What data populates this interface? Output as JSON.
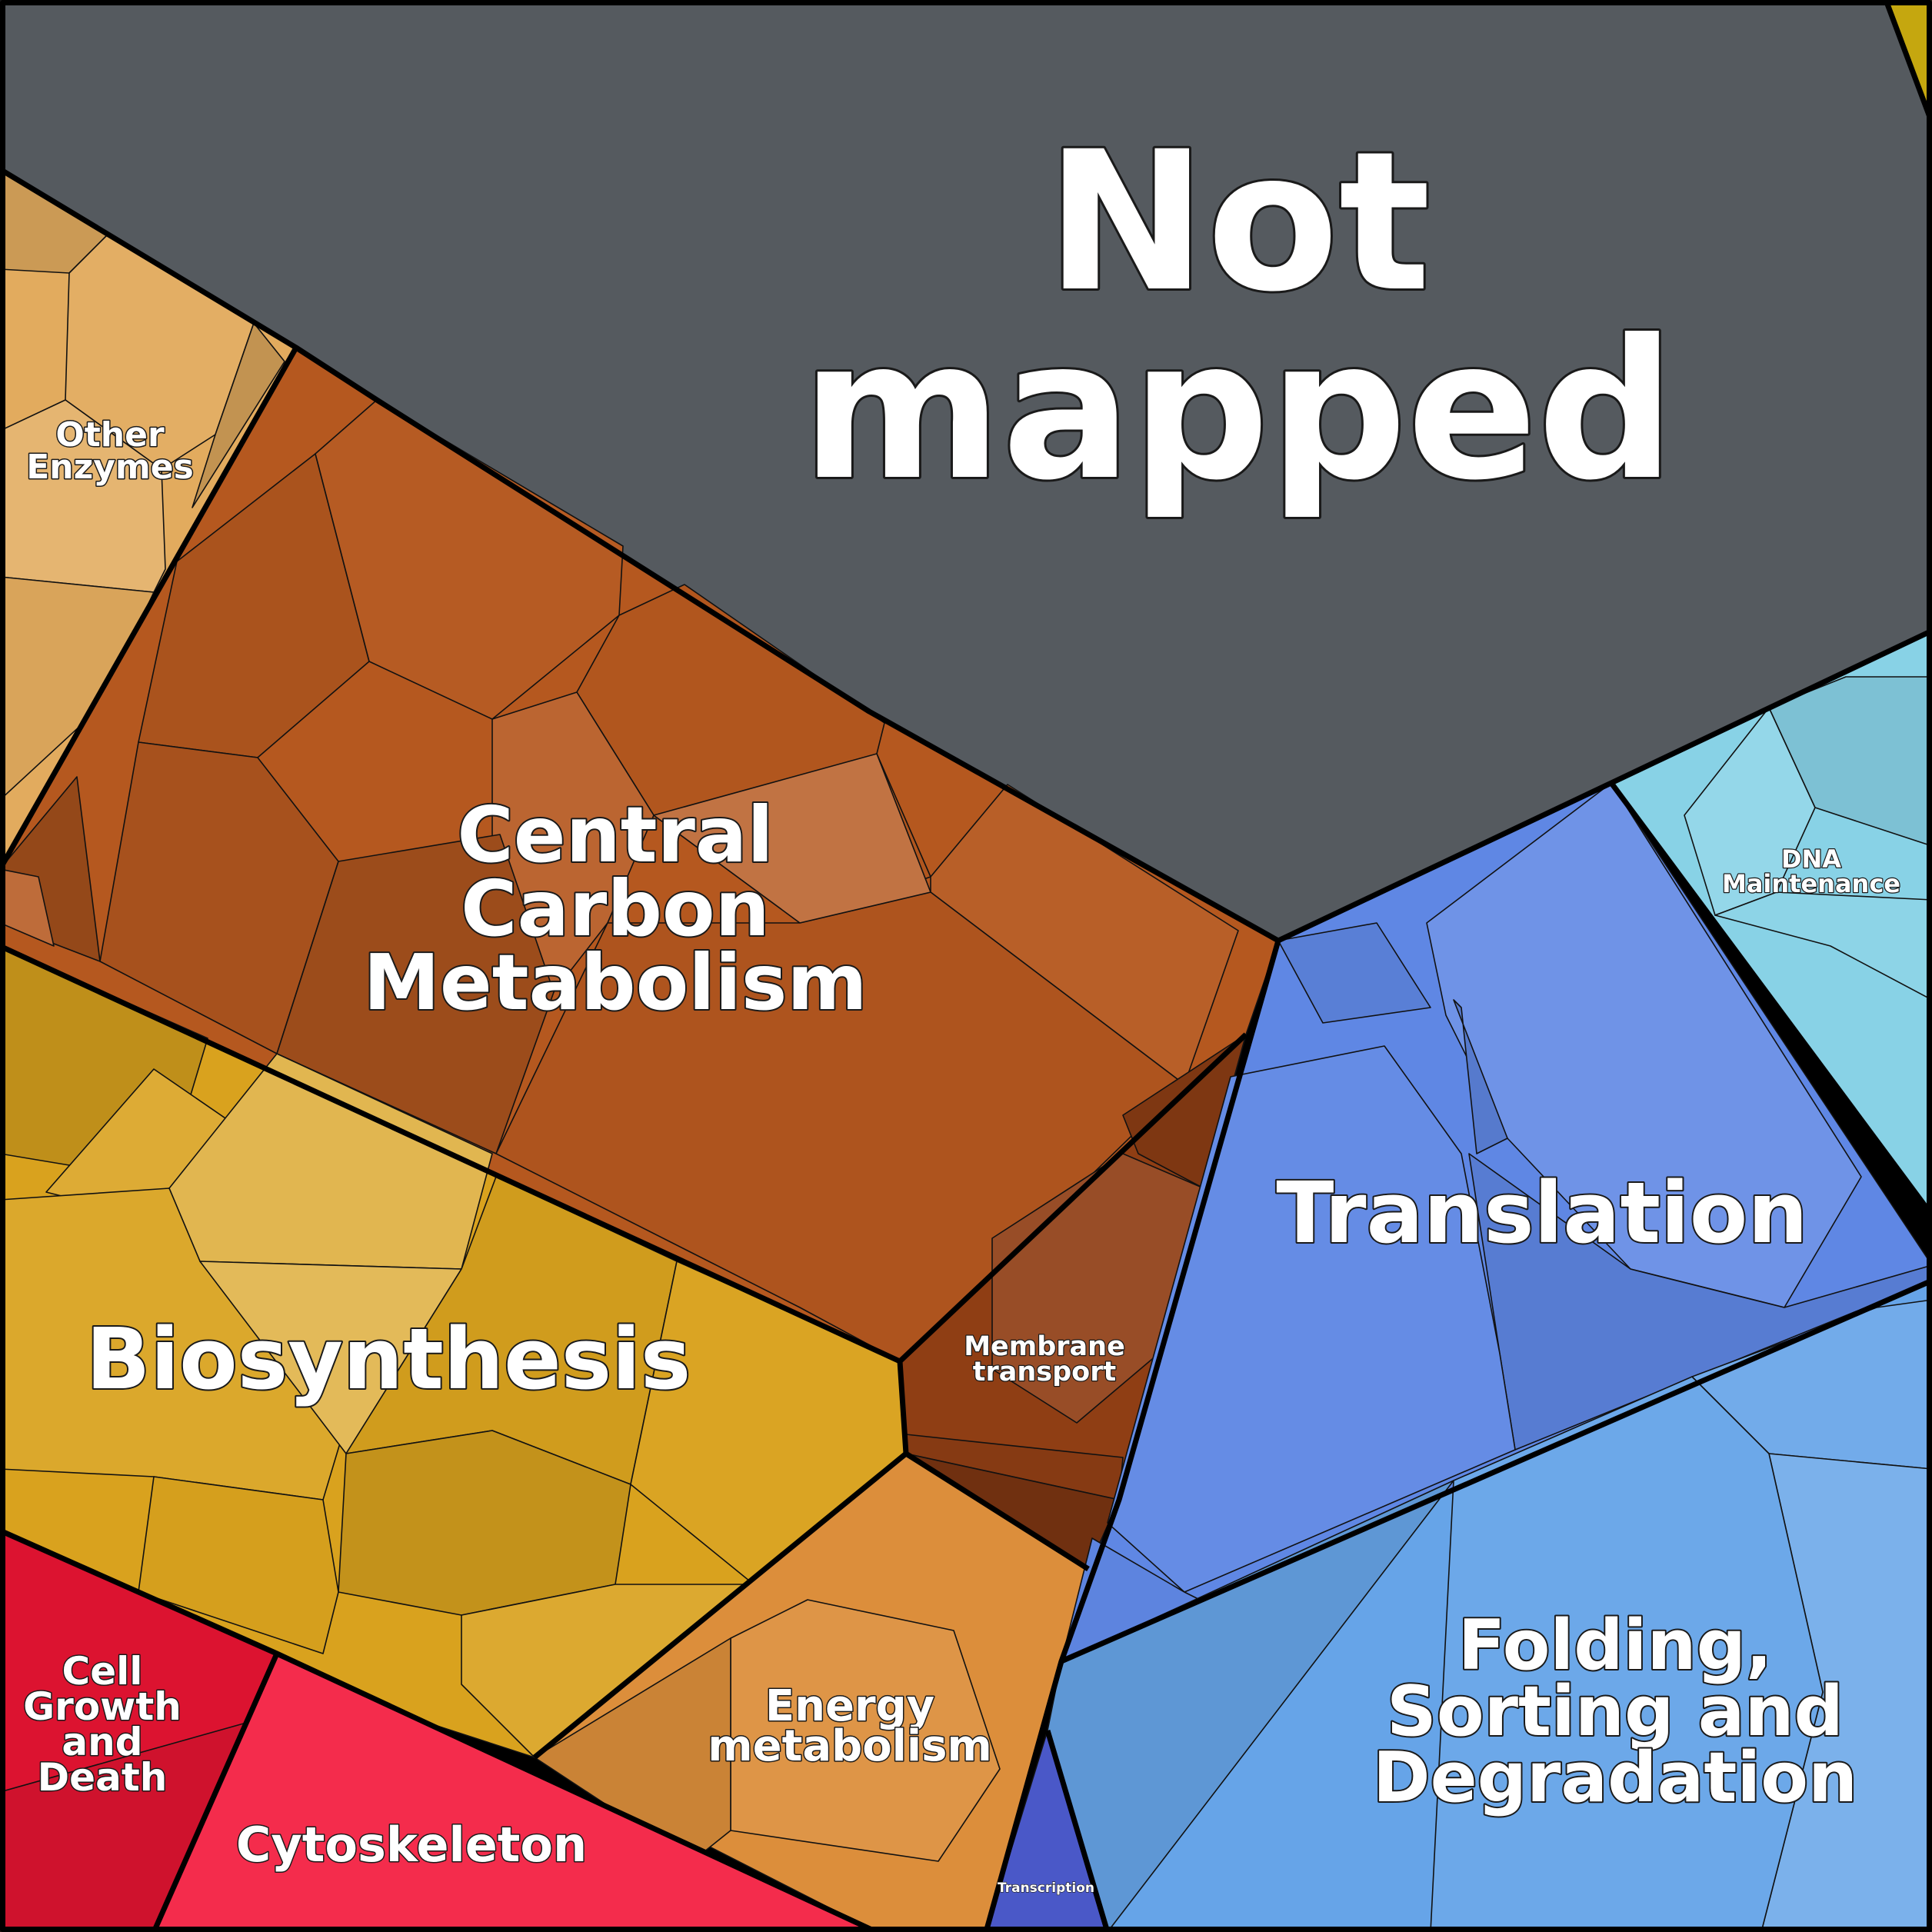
{
  "title": "",
  "colors": {
    "not_mapped": "#555A5F",
    "central_carbon": "#B5581F",
    "other_enzymes": "#E2AB5E",
    "biosynthesis": "#D9A21E",
    "membrane": "#8F3E14",
    "energy": "#DC8E3B",
    "cell_growth": "#DC1330",
    "cytoskeleton": "#F42C4C",
    "transcription": "#4A58C8",
    "translation": "#5F87E4",
    "folding": "#66A4E8",
    "dna": "#88D2E6",
    "corner": "#C5A70F"
  },
  "regions": [
    {
      "id": "not_mapped",
      "label_lines": [
        "Not",
        "mapped"
      ]
    },
    {
      "id": "central_carbon",
      "label_lines": [
        "Central",
        "Carbon",
        "Metabolism"
      ]
    },
    {
      "id": "other_enzymes",
      "label_lines": [
        "Other",
        "Enzymes"
      ]
    },
    {
      "id": "biosynthesis",
      "label_lines": [
        "Biosynthesis"
      ]
    },
    {
      "id": "membrane",
      "label_lines": [
        "Membrane",
        "transport"
      ]
    },
    {
      "id": "energy",
      "label_lines": [
        "Energy",
        "metabolism"
      ]
    },
    {
      "id": "cell_growth",
      "label_lines": [
        "Cell",
        "Growth",
        "and",
        "Death"
      ]
    },
    {
      "id": "cytoskeleton",
      "label_lines": [
        "Cytoskeleton"
      ]
    },
    {
      "id": "transcription",
      "label_lines": [
        "Transcription"
      ]
    },
    {
      "id": "translation",
      "label_lines": [
        "Translation"
      ]
    },
    {
      "id": "folding",
      "label_lines": [
        "Folding,",
        "Sorting and",
        "Degradation"
      ]
    },
    {
      "id": "dna",
      "label_lines": [
        "DNA",
        "Maintenance"
      ]
    }
  ]
}
